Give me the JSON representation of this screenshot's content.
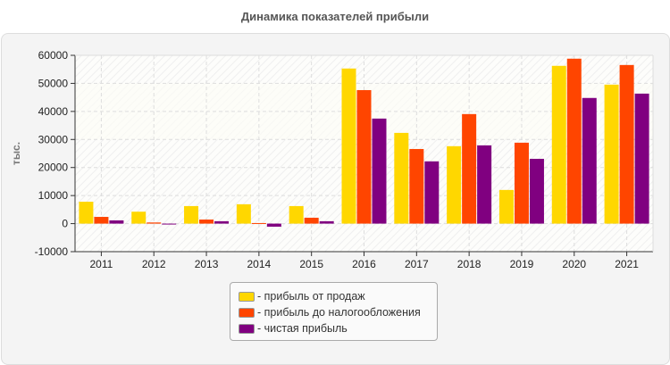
{
  "chart_data": {
    "type": "bar",
    "title": "Динамика показателей прибыли",
    "ylabel": "тыс.",
    "xlabel": "",
    "ylim": [
      -10000,
      60000
    ],
    "yticks": [
      "60000",
      "50000",
      "40000",
      "30000",
      "20000",
      "10000",
      "0",
      "-10000"
    ],
    "grid": true,
    "legend_position": "bottom",
    "categories": [
      "2011",
      "2012",
      "2013",
      "2014",
      "2015",
      "2016",
      "2017",
      "2018",
      "2019",
      "2020",
      "2021"
    ],
    "series": [
      {
        "name": "- прибыль от продаж",
        "color": "#FFD700",
        "values": [
          7800,
          4250,
          6250,
          6900,
          6250,
          55300,
          32350,
          27600,
          12000,
          56250,
          49550
        ]
      },
      {
        "name": "- прибыль до налогообложения",
        "color": "#FF4500",
        "values": [
          2400,
          400,
          1450,
          200,
          2100,
          47600,
          26600,
          39050,
          28850,
          58800,
          56550
        ]
      },
      {
        "name": "- чистая прибыль",
        "color": "#800080",
        "values": [
          1150,
          -300,
          850,
          -1100,
          850,
          37450,
          22200,
          27900,
          23100,
          44800,
          46350
        ]
      }
    ]
  }
}
